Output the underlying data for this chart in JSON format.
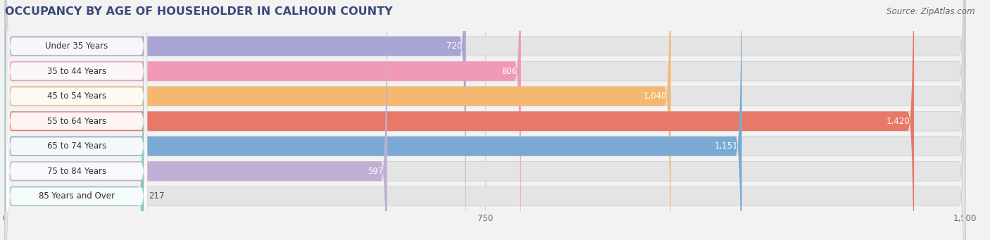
{
  "title": "OCCUPANCY BY AGE OF HOUSEHOLDER IN CALHOUN COUNTY",
  "source": "Source: ZipAtlas.com",
  "categories": [
    "Under 35 Years",
    "35 to 44 Years",
    "45 to 54 Years",
    "55 to 64 Years",
    "65 to 74 Years",
    "75 to 84 Years",
    "85 Years and Over"
  ],
  "values": [
    720,
    806,
    1040,
    1420,
    1151,
    597,
    217
  ],
  "bar_colors": [
    "#a8a4d4",
    "#f09ab8",
    "#f5b870",
    "#e87868",
    "#7aaad4",
    "#c0b0d4",
    "#88c8c4"
  ],
  "xlim_max": 1500,
  "xticks": [
    0,
    750,
    1500
  ],
  "bg_color": "#f2f2f2",
  "row_bg_color": "#e4e4e4",
  "title_color": "#3a4a7a",
  "title_fontsize": 11.5,
  "label_fontsize": 8.5,
  "value_fontsize": 8.5,
  "source_fontsize": 8.5
}
